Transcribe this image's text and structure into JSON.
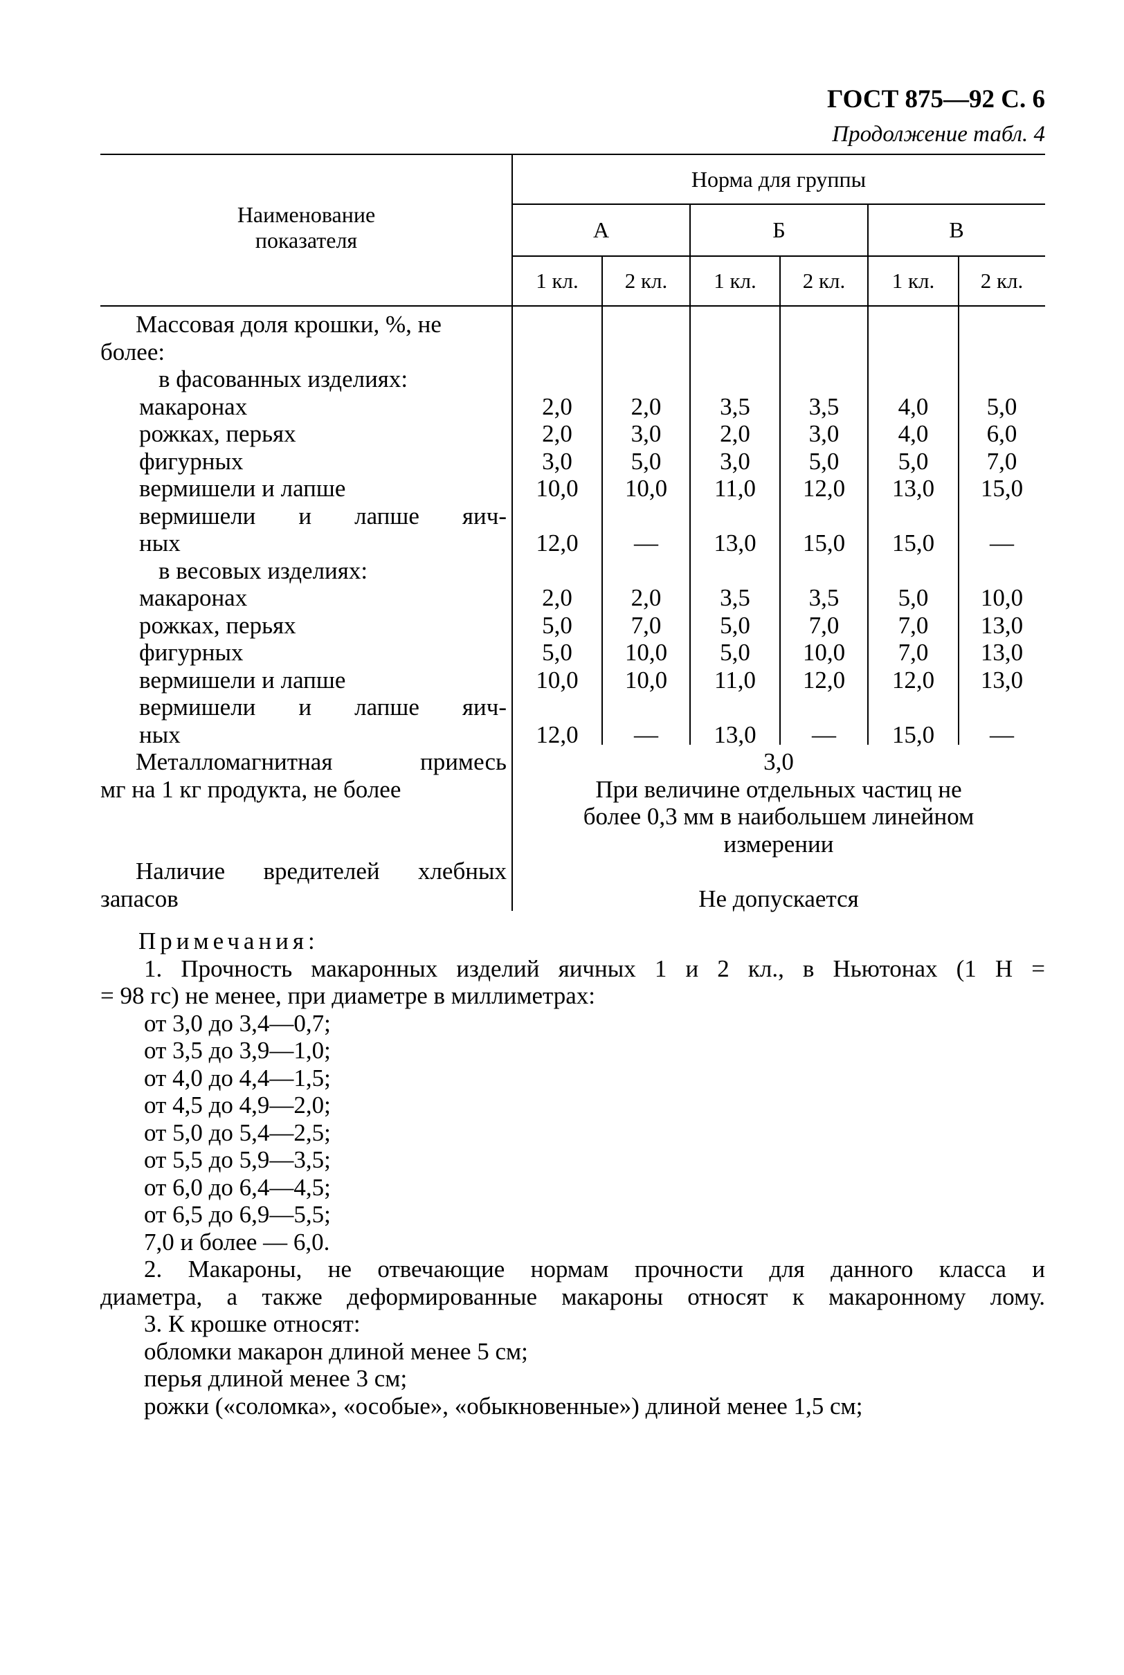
{
  "header": {
    "doc_ref": "ГОСТ 875—92 С. 6",
    "continuation": "Продолжение табл. 4"
  },
  "table": {
    "col_indicator": [
      "Наименование",
      "показателя"
    ],
    "group_header": "Норма для группы",
    "groups": [
      "А",
      "Б",
      "В"
    ],
    "classes": [
      "1 кл.",
      "2 кл.",
      "1 кл.",
      "2 кл.",
      "1 кл.",
      "2 кл."
    ],
    "body": [
      {
        "text": "Массовая доля крошки, %, не"
      },
      {
        "text": "более:"
      },
      {
        "text": "в фасованных изделиях:"
      },
      {
        "text": "макаронах",
        "values": [
          "2,0",
          "2,0",
          "3,5",
          "3,5",
          "4,0",
          "5,0"
        ]
      },
      {
        "text": "рожках, перьях",
        "values": [
          "2,0",
          "3,0",
          "2,0",
          "3,0",
          "4,0",
          "6,0"
        ]
      },
      {
        "text": "фигурных",
        "values": [
          "3,0",
          "5,0",
          "3,0",
          "5,0",
          "5,0",
          "7,0"
        ]
      },
      {
        "text": "вермишели и лапше",
        "values": [
          "10,0",
          "10,0",
          "11,0",
          "12,0",
          "13,0",
          "15,0"
        ]
      },
      {
        "text": "вермишели и лапше яич-"
      },
      {
        "text": "ных",
        "values": [
          "12,0",
          "—",
          "13,0",
          "15,0",
          "15,0",
          "—"
        ]
      },
      {
        "text": "в весовых изделиях:"
      },
      {
        "text": "макаронах",
        "values": [
          "2,0",
          "2,0",
          "3,5",
          "3,5",
          "5,0",
          "10,0"
        ]
      },
      {
        "text": "рожках, перьях",
        "values": [
          "5,0",
          "7,0",
          "5,0",
          "7,0",
          "7,0",
          "13,0"
        ]
      },
      {
        "text": "фигурных",
        "values": [
          "5,0",
          "10,0",
          "5,0",
          "10,0",
          "7,0",
          "13,0"
        ]
      },
      {
        "text": "вермишели и лапше",
        "values": [
          "10,0",
          "10,0",
          "11,0",
          "12,0",
          "12,0",
          "13,0"
        ]
      },
      {
        "text": "вермишели и лапше яич-"
      },
      {
        "text": "ных",
        "values": [
          "12,0",
          "—",
          "13,0",
          "—",
          "15,0",
          "—"
        ]
      },
      {
        "text": "Металломагнитная примесь",
        "merged": "3,0"
      },
      {
        "text": "мг на 1 кг продукта, не более",
        "merged": "При величине отдельных частиц не"
      },
      {
        "text": "",
        "merged": "более 0,3 мм в наибольшем линейном"
      },
      {
        "text": "",
        "merged": "измерении"
      },
      {
        "text": "Наличие вредителей хлебных"
      },
      {
        "text": "запасов",
        "merged": "Не допускается"
      }
    ]
  },
  "notes": [
    "Примечания:",
    "1. Прочность макаронных изделий яичных 1 и 2 кл., в Ньютонах (1 Н =",
    "= 98 гс) не менее, при диаметре в миллиметрах:",
    "от 3,0 до 3,4—0,7;",
    "от 3,5 до 3,9—1,0;",
    "от 4,0 до 4,4—1,5;",
    "от 4,5 до 4,9—2,0;",
    "от 5,0 до 5,4—2,5;",
    "от 5,5 до 5,9—3,5;",
    "от 6,0 до 6,4—4,5;",
    "от 6,5 до 6,9—5,5;",
    "7,0 и более — 6,0.",
    "2. Макароны, не отвечающие нормам прочности для данного класса и",
    "диаметра, а также деформированные макароны относят к макаронному лому.",
    "3. К крошке относят:",
    "обломки макарон длиной менее 5 см;",
    "перья длиной менее 3 см;",
    "рожки («соломка», «особые», «обыкновенные») длиной менее 1,5 см;"
  ]
}
